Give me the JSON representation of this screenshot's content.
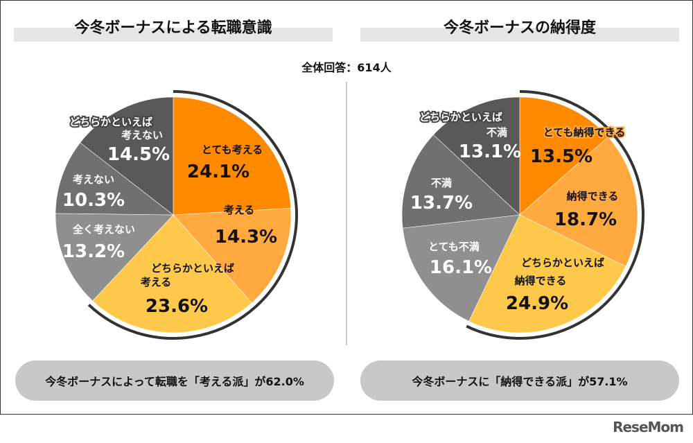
{
  "total_label": "全体回答：614人",
  "logo": "ReseMom",
  "colors": {
    "dark_orange": "#ff8a00",
    "light_orange": "#ffa93f",
    "yellow": "#fec84a",
    "gray_light": "#8f8f8f",
    "gray_mid": "#707070",
    "gray_dark": "#595959",
    "ring": "#333333"
  },
  "chart_data": [
    {
      "type": "pie",
      "title": "今冬ボーナスによる転職意識",
      "slices": [
        {
          "label_lines": [
            "とても考える"
          ],
          "value": 24.1,
          "value_label": "24.1%",
          "color": "#ff8a00"
        },
        {
          "label_lines": [
            "考える"
          ],
          "value": 14.3,
          "value_label": "14.3%",
          "color": "#ffa93f"
        },
        {
          "label_lines": [
            "どちらかといえば",
            "考える"
          ],
          "value": 23.6,
          "value_label": "23.6%",
          "color": "#fec84a"
        },
        {
          "label_lines": [
            "全く考えない"
          ],
          "value": 13.2,
          "value_label": "13.2%",
          "color": "#8f8f8f"
        },
        {
          "label_lines": [
            "考えない"
          ],
          "value": 10.3,
          "value_label": "10.3%",
          "color": "#707070"
        },
        {
          "label_lines": [
            "どちらかといえば",
            "考えない"
          ],
          "value": 14.5,
          "value_label": "14.5%",
          "color": "#595959"
        }
      ],
      "highlight_total": 62.0,
      "summary": "今冬ボーナスによって転職を「考える派」が62.0%"
    },
    {
      "type": "pie",
      "title": "今冬ボーナスの納得度",
      "slices": [
        {
          "label_lines": [
            "とても納得できる"
          ],
          "value": 13.5,
          "value_label": "13.5%",
          "color": "#ff8a00"
        },
        {
          "label_lines": [
            "納得できる"
          ],
          "value": 18.7,
          "value_label": "18.7%",
          "color": "#ffa93f"
        },
        {
          "label_lines": [
            "どちらかといえば",
            "納得できる"
          ],
          "value": 24.9,
          "value_label": "24.9%",
          "color": "#fec84a"
        },
        {
          "label_lines": [
            "とても不満"
          ],
          "value": 16.1,
          "value_label": "16.1%",
          "color": "#8f8f8f"
        },
        {
          "label_lines": [
            "不満"
          ],
          "value": 13.7,
          "value_label": "13.7%",
          "color": "#707070"
        },
        {
          "label_lines": [
            "どちらかといえば",
            "不満"
          ],
          "value": 13.1,
          "value_label": "13.1%",
          "color": "#595959"
        }
      ],
      "highlight_total": 57.1,
      "summary": "今冬ボーナスに「納得できる派」が57.1%"
    }
  ]
}
